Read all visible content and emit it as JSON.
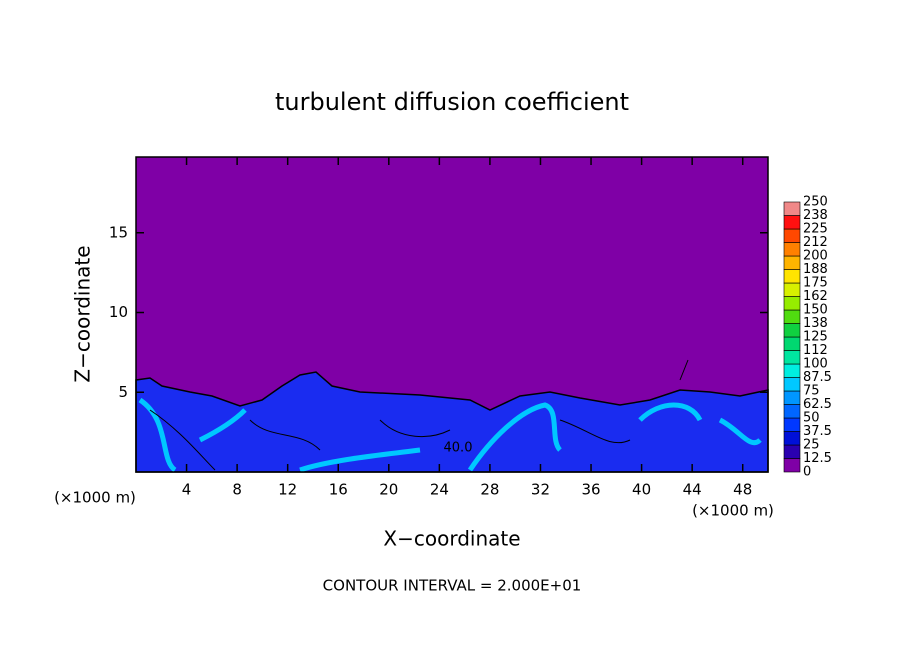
{
  "chart_data": {
    "type": "contour",
    "title": "turbulent diffusion coefficient",
    "x_label": "X−coordinate",
    "y_label": "Z−coordinate",
    "y_unit_label": "(×1000 m)",
    "x_unit_label": "(×1000 m)",
    "footer": "CONTOUR INTERVAL = 2.000E+01",
    "contour_label": "40.0",
    "xlim": [
      0,
      50
    ],
    "xticks": [
      4,
      8,
      12,
      16,
      20,
      24,
      28,
      32,
      36,
      40,
      44,
      48
    ],
    "ylim": [
      0,
      19.75
    ],
    "yticks": [
      5,
      10,
      15
    ],
    "colorbar": {
      "levels": [
        0,
        12.5,
        25,
        37.5,
        50,
        62.5,
        75,
        87.5,
        100,
        {
          "value": 112.5,
          "label": "112"
        },
        125,
        {
          "value": 137.5,
          "label": "138"
        },
        150,
        {
          "value": 162.5,
          "label": "162"
        },
        175,
        {
          "value": 187.5,
          "label": "188"
        },
        200,
        {
          "value": 212.5,
          "label": "212"
        },
        225,
        {
          "value": 237.5,
          "label": "238"
        },
        250
      ],
      "colors": [
        "#7f00a6",
        "#2a00b0",
        "#0010d8",
        "#0038ff",
        "#0066ff",
        "#0096ff",
        "#00c8ff",
        "#00eee0",
        "#00e6a0",
        "#00d870",
        "#10d040",
        "#50dc10",
        "#96ec00",
        "#d8f000",
        "#ffe400",
        "#ffb400",
        "#ff8000",
        "#ff4800",
        "#ff1010",
        "#f08888"
      ]
    }
  }
}
